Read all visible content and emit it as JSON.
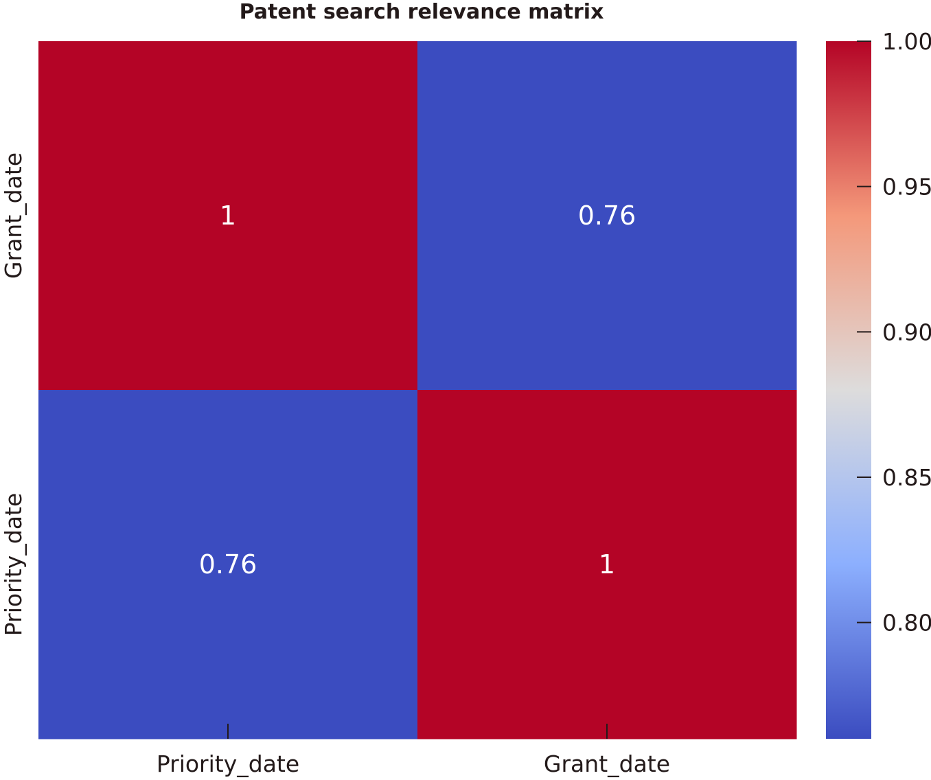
{
  "chart_data": {
    "type": "heatmap",
    "title": "Patent search relevance matrix",
    "x_categories": [
      "Priority_date",
      "Grant_date"
    ],
    "y_categories": [
      "Grant_date",
      "Priority_date"
    ],
    "values": [
      [
        1.0,
        0.76
      ],
      [
        0.76,
        1.0
      ]
    ],
    "cell_labels": [
      [
        "1",
        "0.76"
      ],
      [
        "0.76",
        "1"
      ]
    ],
    "colormap": "coolwarm",
    "colormap_low": "#3b4cc0",
    "colormap_high": "#b40426",
    "colorbar": {
      "range": [
        0.76,
        1.0
      ],
      "ticks": [
        0.8,
        0.85,
        0.9,
        0.95,
        1.0
      ],
      "tick_labels": [
        "0.80",
        "0.85",
        "0.90",
        "0.95",
        "1.00"
      ]
    }
  }
}
